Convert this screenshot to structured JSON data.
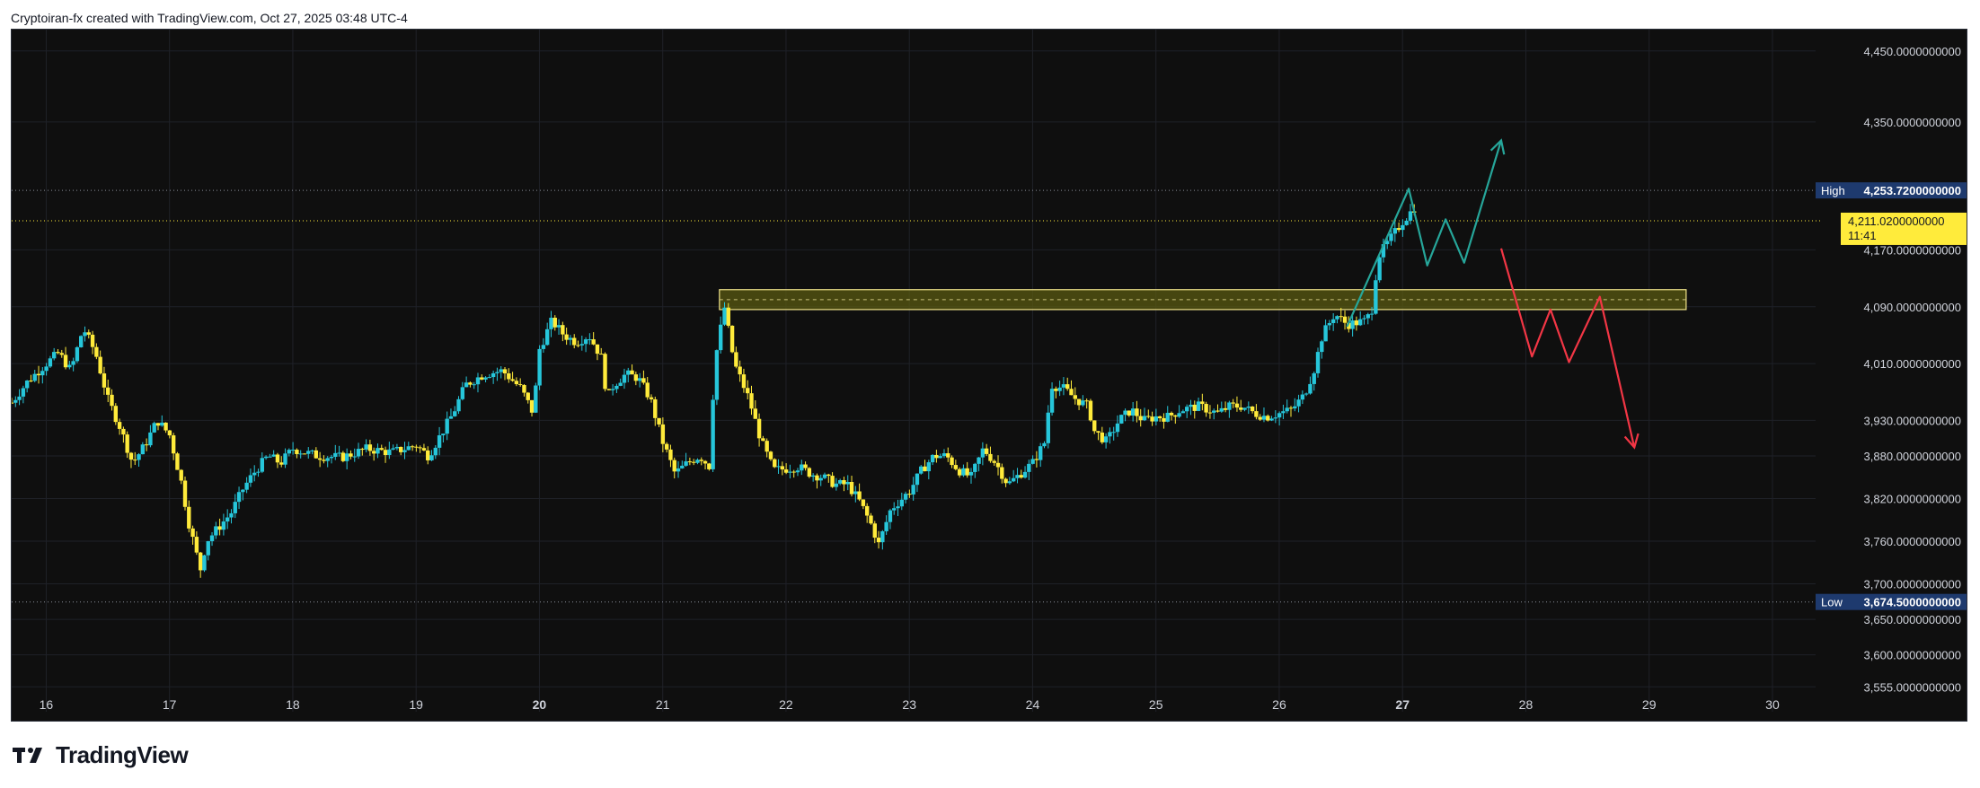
{
  "header": {
    "attribution": "Cryptoiran-fx created with TradingView.com, Oct 27, 2025 03:48 UTC-4"
  },
  "footer": {
    "brand": "TradingView"
  },
  "colors": {
    "background": "#0f0f0f",
    "grid": "#1f2128",
    "up": "#26c6da",
    "down": "#ffeb3b",
    "zone_fill": "#5a5a12",
    "zone_border": "#f0e38a",
    "bull_path": "#26a69a",
    "bear_path": "#f23645",
    "axis_text": "#d1d4dc",
    "label_bg": "#1e3a6e",
    "price_label_bg": "#ffeb3b"
  },
  "chart_data": {
    "type": "candlestick",
    "ylim": [
      3520,
      4480
    ],
    "y_ticks": [
      "4,450.0000000000",
      "4,350.0000000000",
      "4,170.0000000000",
      "4,090.0000000000",
      "4,010.0000000000",
      "3,930.0000000000",
      "3,880.0000000000",
      "3,820.0000000000",
      "3,760.0000000000",
      "3,700.0000000000",
      "3,650.0000000000",
      "3,600.0000000000",
      "3,555.0000000000"
    ],
    "y_tick_values": [
      4450,
      4350,
      4170,
      4090,
      4010,
      3930,
      3880,
      3820,
      3760,
      3700,
      3650,
      3600,
      3555
    ],
    "x_ticks": [
      {
        "day": 16,
        "label": "16",
        "bold": false
      },
      {
        "day": 17,
        "label": "17",
        "bold": false
      },
      {
        "day": 18,
        "label": "18",
        "bold": false
      },
      {
        "day": 19,
        "label": "19",
        "bold": false
      },
      {
        "day": 20,
        "label": "20",
        "bold": true
      },
      {
        "day": 21,
        "label": "21",
        "bold": false
      },
      {
        "day": 22,
        "label": "22",
        "bold": false
      },
      {
        "day": 23,
        "label": "23",
        "bold": false
      },
      {
        "day": 24,
        "label": "24",
        "bold": false
      },
      {
        "day": 25,
        "label": "25",
        "bold": false
      },
      {
        "day": 26,
        "label": "26",
        "bold": false
      },
      {
        "day": 27,
        "label": "27",
        "bold": true
      },
      {
        "day": 28,
        "label": "28",
        "bold": false
      },
      {
        "day": 29,
        "label": "29",
        "bold": false
      },
      {
        "day": 30,
        "label": "30",
        "bold": false
      }
    ],
    "xlim": [
      15.72,
      30.35
    ],
    "high": {
      "tag": "High",
      "value": 4253.72,
      "label": "4,253.7200000000"
    },
    "low": {
      "tag": "Low",
      "value": 3674.5,
      "label": "3,674.5000000000"
    },
    "last": {
      "value": 4211.02,
      "label": "4,211.0200000000",
      "countdown": "11:41"
    },
    "zone": {
      "x0": 21.46,
      "x1": 29.3,
      "y_top": 4114,
      "y_bottom": 4086
    },
    "bull_projection": [
      [
        26.55,
        4062
      ],
      [
        27.05,
        4256
      ],
      [
        27.2,
        4148
      ],
      [
        27.35,
        4213
      ],
      [
        27.5,
        4152
      ],
      [
        27.8,
        4324
      ]
    ],
    "bear_projection": [
      [
        27.8,
        4172
      ],
      [
        28.05,
        4020
      ],
      [
        28.2,
        4086
      ],
      [
        28.35,
        4012
      ],
      [
        28.6,
        4104
      ],
      [
        28.88,
        3892
      ]
    ],
    "anchors": [
      [
        15.72,
        3955
      ],
      [
        15.85,
        3985
      ],
      [
        16.0,
        4010
      ],
      [
        16.1,
        4025
      ],
      [
        16.2,
        4000
      ],
      [
        16.3,
        4060
      ],
      [
        16.4,
        4025
      ],
      [
        16.5,
        3960
      ],
      [
        16.6,
        3920
      ],
      [
        16.7,
        3870
      ],
      [
        16.8,
        3895
      ],
      [
        16.9,
        3930
      ],
      [
        17.0,
        3910
      ],
      [
        17.1,
        3840
      ],
      [
        17.15,
        3790
      ],
      [
        17.25,
        3720
      ],
      [
        17.3,
        3760
      ],
      [
        17.4,
        3780
      ],
      [
        17.5,
        3800
      ],
      [
        17.6,
        3835
      ],
      [
        17.7,
        3860
      ],
      [
        17.8,
        3880
      ],
      [
        17.9,
        3870
      ],
      [
        18.0,
        3890
      ],
      [
        18.2,
        3880
      ],
      [
        18.4,
        3878
      ],
      [
        18.6,
        3890
      ],
      [
        18.8,
        3885
      ],
      [
        19.0,
        3895
      ],
      [
        19.1,
        3880
      ],
      [
        19.2,
        3910
      ],
      [
        19.3,
        3940
      ],
      [
        19.4,
        3980
      ],
      [
        19.55,
        3995
      ],
      [
        19.7,
        4000
      ],
      [
        19.85,
        3975
      ],
      [
        19.95,
        3940
      ],
      [
        20.0,
        4030
      ],
      [
        20.1,
        4070
      ],
      [
        20.2,
        4050
      ],
      [
        20.3,
        4040
      ],
      [
        20.4,
        4050
      ],
      [
        20.5,
        4020
      ],
      [
        20.55,
        3960
      ],
      [
        20.6,
        3980
      ],
      [
        20.7,
        3995
      ],
      [
        20.8,
        3990
      ],
      [
        20.9,
        3960
      ],
      [
        21.0,
        3900
      ],
      [
        21.1,
        3855
      ],
      [
        21.2,
        3870
      ],
      [
        21.3,
        3880
      ],
      [
        21.38,
        3865
      ],
      [
        21.42,
        4010
      ],
      [
        21.5,
        4090
      ],
      [
        21.58,
        4010
      ],
      [
        21.7,
        3960
      ],
      [
        21.8,
        3900
      ],
      [
        21.9,
        3860
      ],
      [
        22.0,
        3862
      ],
      [
        22.1,
        3865
      ],
      [
        22.2,
        3855
      ],
      [
        22.3,
        3850
      ],
      [
        22.4,
        3840
      ],
      [
        22.5,
        3840
      ],
      [
        22.6,
        3815
      ],
      [
        22.7,
        3780
      ],
      [
        22.75,
        3755
      ],
      [
        22.85,
        3805
      ],
      [
        23.0,
        3830
      ],
      [
        23.1,
        3860
      ],
      [
        23.2,
        3880
      ],
      [
        23.3,
        3880
      ],
      [
        23.4,
        3860
      ],
      [
        23.5,
        3850
      ],
      [
        23.6,
        3890
      ],
      [
        23.7,
        3870
      ],
      [
        23.8,
        3840
      ],
      [
        23.9,
        3855
      ],
      [
        24.0,
        3870
      ],
      [
        24.1,
        3900
      ],
      [
        24.15,
        3980
      ],
      [
        24.25,
        3975
      ],
      [
        24.35,
        3960
      ],
      [
        24.45,
        3950
      ],
      [
        24.5,
        3915
      ],
      [
        24.6,
        3900
      ],
      [
        24.7,
        3930
      ],
      [
        24.8,
        3945
      ],
      [
        24.9,
        3930
      ],
      [
        25.0,
        3935
      ],
      [
        25.1,
        3935
      ],
      [
        25.2,
        3945
      ],
      [
        25.35,
        3950
      ],
      [
        25.5,
        3940
      ],
      [
        25.6,
        3950
      ],
      [
        25.7,
        3950
      ],
      [
        25.8,
        3940
      ],
      [
        25.9,
        3935
      ],
      [
        26.0,
        3940
      ],
      [
        26.1,
        3945
      ],
      [
        26.2,
        3965
      ],
      [
        26.28,
        4000
      ],
      [
        26.35,
        4050
      ],
      [
        26.45,
        4080
      ],
      [
        26.55,
        4065
      ],
      [
        26.7,
        4070
      ],
      [
        26.75,
        4085
      ],
      [
        26.8,
        4160
      ],
      [
        26.9,
        4185
      ],
      [
        27.0,
        4210
      ],
      [
        27.05,
        4220
      ],
      [
        27.1,
        4230
      ],
      [
        27.12,
        4211
      ]
    ]
  }
}
